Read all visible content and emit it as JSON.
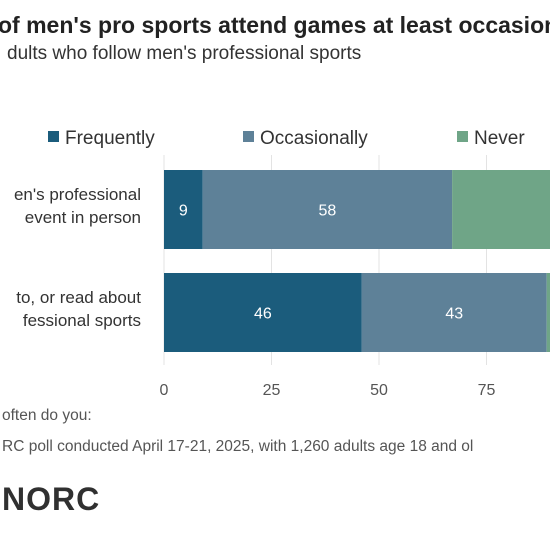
{
  "header": {
    "title": "of men's pro sports attend games at least occasiona",
    "subtitle": "dults who follow men's professional sports"
  },
  "chart_data": {
    "type": "bar",
    "orientation": "horizontal",
    "stacked": true,
    "categories": [
      [
        "en's professional",
        "event in person"
      ],
      [
        "to, or read about",
        "fessional sports"
      ]
    ],
    "series": [
      {
        "name": "Frequently",
        "color": "#1b5c7c",
        "values": [
          9,
          46
        ]
      },
      {
        "name": "Occasionally",
        "color": "#5e8198",
        "values": [
          58,
          43
        ]
      },
      {
        "name": "Never",
        "color": "#6fa587",
        "values": [
          33,
          11
        ]
      }
    ],
    "data_labels": [
      [
        "9",
        "46"
      ],
      [
        "58",
        "43"
      ],
      [
        "",
        ""
      ]
    ],
    "xticks": [
      0,
      25,
      50,
      75
    ],
    "xlim": [
      0,
      100
    ],
    "grid": true,
    "legend_position": "top"
  },
  "notes": {
    "question": "often do you:",
    "source": "RC poll conducted April 17-21, 2025, with 1,260 adults age 18 and ol"
  },
  "logo": {
    "text": "NORC"
  }
}
